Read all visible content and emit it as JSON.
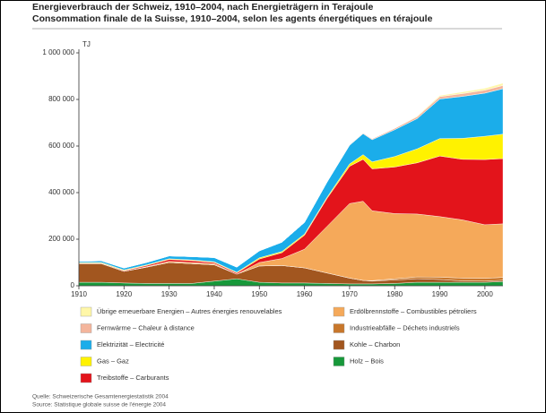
{
  "chart_data": {
    "type": "stacked_area",
    "title": "Energieverbrauch der Schweiz, 1910–2004, nach Energieträgern in Terajoule",
    "subtitle": "Consommation finale de la Suisse, 1910–2004, selon les agents énergétiques en térajoule",
    "y_unit": "TJ",
    "source_lines": [
      "Quelle: Schweizerische Gesamtenergiestatistik 2004",
      "Source: Statistique globale suisse de l'énergie 2004"
    ],
    "x": [
      1910,
      1915,
      1920,
      1925,
      1930,
      1935,
      1940,
      1945,
      1950,
      1955,
      1960,
      1965,
      1970,
      1973,
      1975,
      1980,
      1985,
      1990,
      1995,
      2000,
      2004
    ],
    "xlim": [
      1910,
      2004
    ],
    "xticks": [
      1910,
      1920,
      1930,
      1940,
      1950,
      1960,
      1970,
      1980,
      1990,
      2000
    ],
    "ylim": [
      0,
      1000000
    ],
    "yticks": [
      0,
      {
        "value": 200000,
        "label": "200 000"
      },
      {
        "value": 400000,
        "label": "400 000"
      },
      {
        "value": 600000,
        "label": "600 000"
      },
      {
        "value": 800000,
        "label": "800 000"
      },
      {
        "value": 1000000,
        "label": "1 000 000"
      }
    ],
    "series": [
      {
        "name": "Übrige erneuerbare Energien – Autres énergies renouvelables",
        "color": "#fff7a8",
        "values": [
          0,
          0,
          0,
          0,
          0,
          0,
          0,
          0,
          0,
          0,
          0,
          0,
          0,
          0,
          0,
          0,
          3000,
          5000,
          7000,
          8000,
          10000
        ]
      },
      {
        "name": "Fernwärme – Chaleur à distance",
        "color": "#f4b59c",
        "values": [
          0,
          0,
          0,
          0,
          0,
          0,
          0,
          0,
          0,
          0,
          0,
          0,
          2000,
          3000,
          4000,
          6000,
          8000,
          10000,
          12000,
          13000,
          14000
        ]
      },
      {
        "name": "Elektrizität – Electricité",
        "color": "#1badea",
        "values": [
          5000,
          7000,
          8000,
          10000,
          12000,
          14000,
          18000,
          22000,
          30000,
          40000,
          50000,
          65000,
          80000,
          90000,
          95000,
          115000,
          130000,
          170000,
          180000,
          185000,
          195000
        ]
      },
      {
        "name": "Gas – Gaz",
        "color": "#fff200",
        "values": [
          3000,
          3000,
          3000,
          3000,
          3000,
          3000,
          3000,
          3000,
          5000,
          5000,
          5000,
          5000,
          10000,
          20000,
          30000,
          45000,
          60000,
          75000,
          90000,
          100000,
          105000
        ]
      },
      {
        "name": "Treibstoffe – Carburants",
        "color": "#e3141b",
        "values": [
          2000,
          2000,
          3000,
          5000,
          8000,
          8000,
          5000,
          5000,
          15000,
          25000,
          60000,
          120000,
          160000,
          180000,
          180000,
          200000,
          220000,
          260000,
          260000,
          280000,
          280000
        ]
      },
      {
        "name": "Erdölbrennstoffe – Combustibles pétroliers",
        "color": "#f5a95a",
        "values": [
          0,
          0,
          0,
          2000,
          5000,
          5000,
          5000,
          0,
          15000,
          30000,
          80000,
          200000,
          320000,
          340000,
          300000,
          280000,
          270000,
          260000,
          250000,
          230000,
          230000
        ]
      },
      {
        "name": "Industrieabfälle – Déchets industriels",
        "color": "#c8772b",
        "values": [
          0,
          0,
          0,
          0,
          0,
          0,
          0,
          0,
          0,
          0,
          0,
          0,
          0,
          0,
          2000,
          5000,
          8000,
          10000,
          12000,
          12000,
          12000
        ]
      },
      {
        "name": "Kohle – Charbon",
        "color": "#a2561f",
        "values": [
          80000,
          80000,
          50000,
          70000,
          90000,
          85000,
          70000,
          20000,
          70000,
          75000,
          65000,
          45000,
          25000,
          15000,
          12000,
          15000,
          15000,
          12000,
          6000,
          5000,
          6000
        ]
      },
      {
        "name": "Holz – Bois",
        "color": "#17983a",
        "values": [
          15000,
          15000,
          12000,
          10000,
          10000,
          10000,
          20000,
          30000,
          15000,
          12000,
          12000,
          10000,
          8000,
          8000,
          8000,
          10000,
          15000,
          15000,
          15000,
          15000,
          18000
        ]
      }
    ]
  }
}
